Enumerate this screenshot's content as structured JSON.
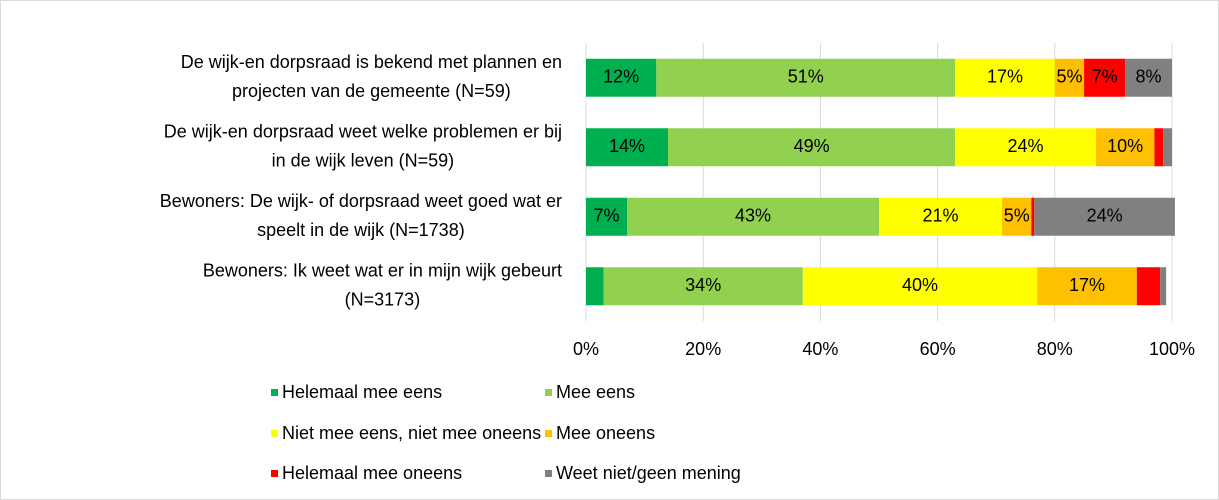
{
  "chart_data": {
    "type": "stacked_barh",
    "categories": [
      [
        "De wijk-en dorpsraad is bekend met plannen en",
        "projecten van de gemeente (N=59)"
      ],
      [
        "De wijk-en dorpsraad weet welke problemen er bij",
        "in de wijk leven (N=59)"
      ],
      [
        "Bewoners: De wijk- of dorpsraad weet goed wat er",
        "speelt in de wijk (N=1738)"
      ],
      [
        "Bewoners: Ik weet wat er in mijn wijk gebeurt",
        "(N=3173)"
      ]
    ],
    "series": [
      {
        "name": "Helemaal mee eens",
        "color": "#00b050",
        "label_color": "#ffffff",
        "values": [
          12,
          14,
          7,
          3
        ],
        "value_labels": [
          "12%",
          "14%",
          "7%",
          null
        ]
      },
      {
        "name": "Mee eens",
        "color": "#92d050",
        "label_color": "#000000",
        "values": [
          51,
          49,
          43,
          34
        ],
        "value_labels": [
          "51%",
          "49%",
          "43%",
          "34%"
        ]
      },
      {
        "name": "Niet mee eens, niet mee oneens",
        "color": "#ffff00",
        "label_color": "#000000",
        "values": [
          17,
          24,
          21,
          40
        ],
        "value_labels": [
          "17%",
          "24%",
          "21%",
          "40%"
        ]
      },
      {
        "name": "Mee oneens",
        "color": "#ffc000",
        "label_color": "#000000",
        "values": [
          5,
          10,
          5,
          17
        ],
        "value_labels": [
          "5%",
          "10%",
          "5%",
          "17%"
        ]
      },
      {
        "name": "Helemaal mee oneens",
        "color": "#ff0000",
        "label_color": "#ffffff",
        "values": [
          7,
          1.5,
          0.5,
          4
        ],
        "value_labels": [
          "7%",
          null,
          null,
          null
        ]
      },
      {
        "name": "Weet niet/geen mening",
        "color": "#808080",
        "label_color": "#ffffff",
        "values": [
          8,
          1.5,
          24,
          1
        ],
        "value_labels": [
          "8%",
          null,
          "24%",
          null
        ]
      }
    ],
    "xlim": [
      0,
      100
    ],
    "xticks": [
      {
        "value": 0,
        "label": "0%"
      },
      {
        "value": 20,
        "label": "20%"
      },
      {
        "value": 40,
        "label": "40%"
      },
      {
        "value": 60,
        "label": "60%"
      },
      {
        "value": 80,
        "label": "80%"
      },
      {
        "value": 100,
        "label": "100%"
      }
    ],
    "grid": true
  }
}
